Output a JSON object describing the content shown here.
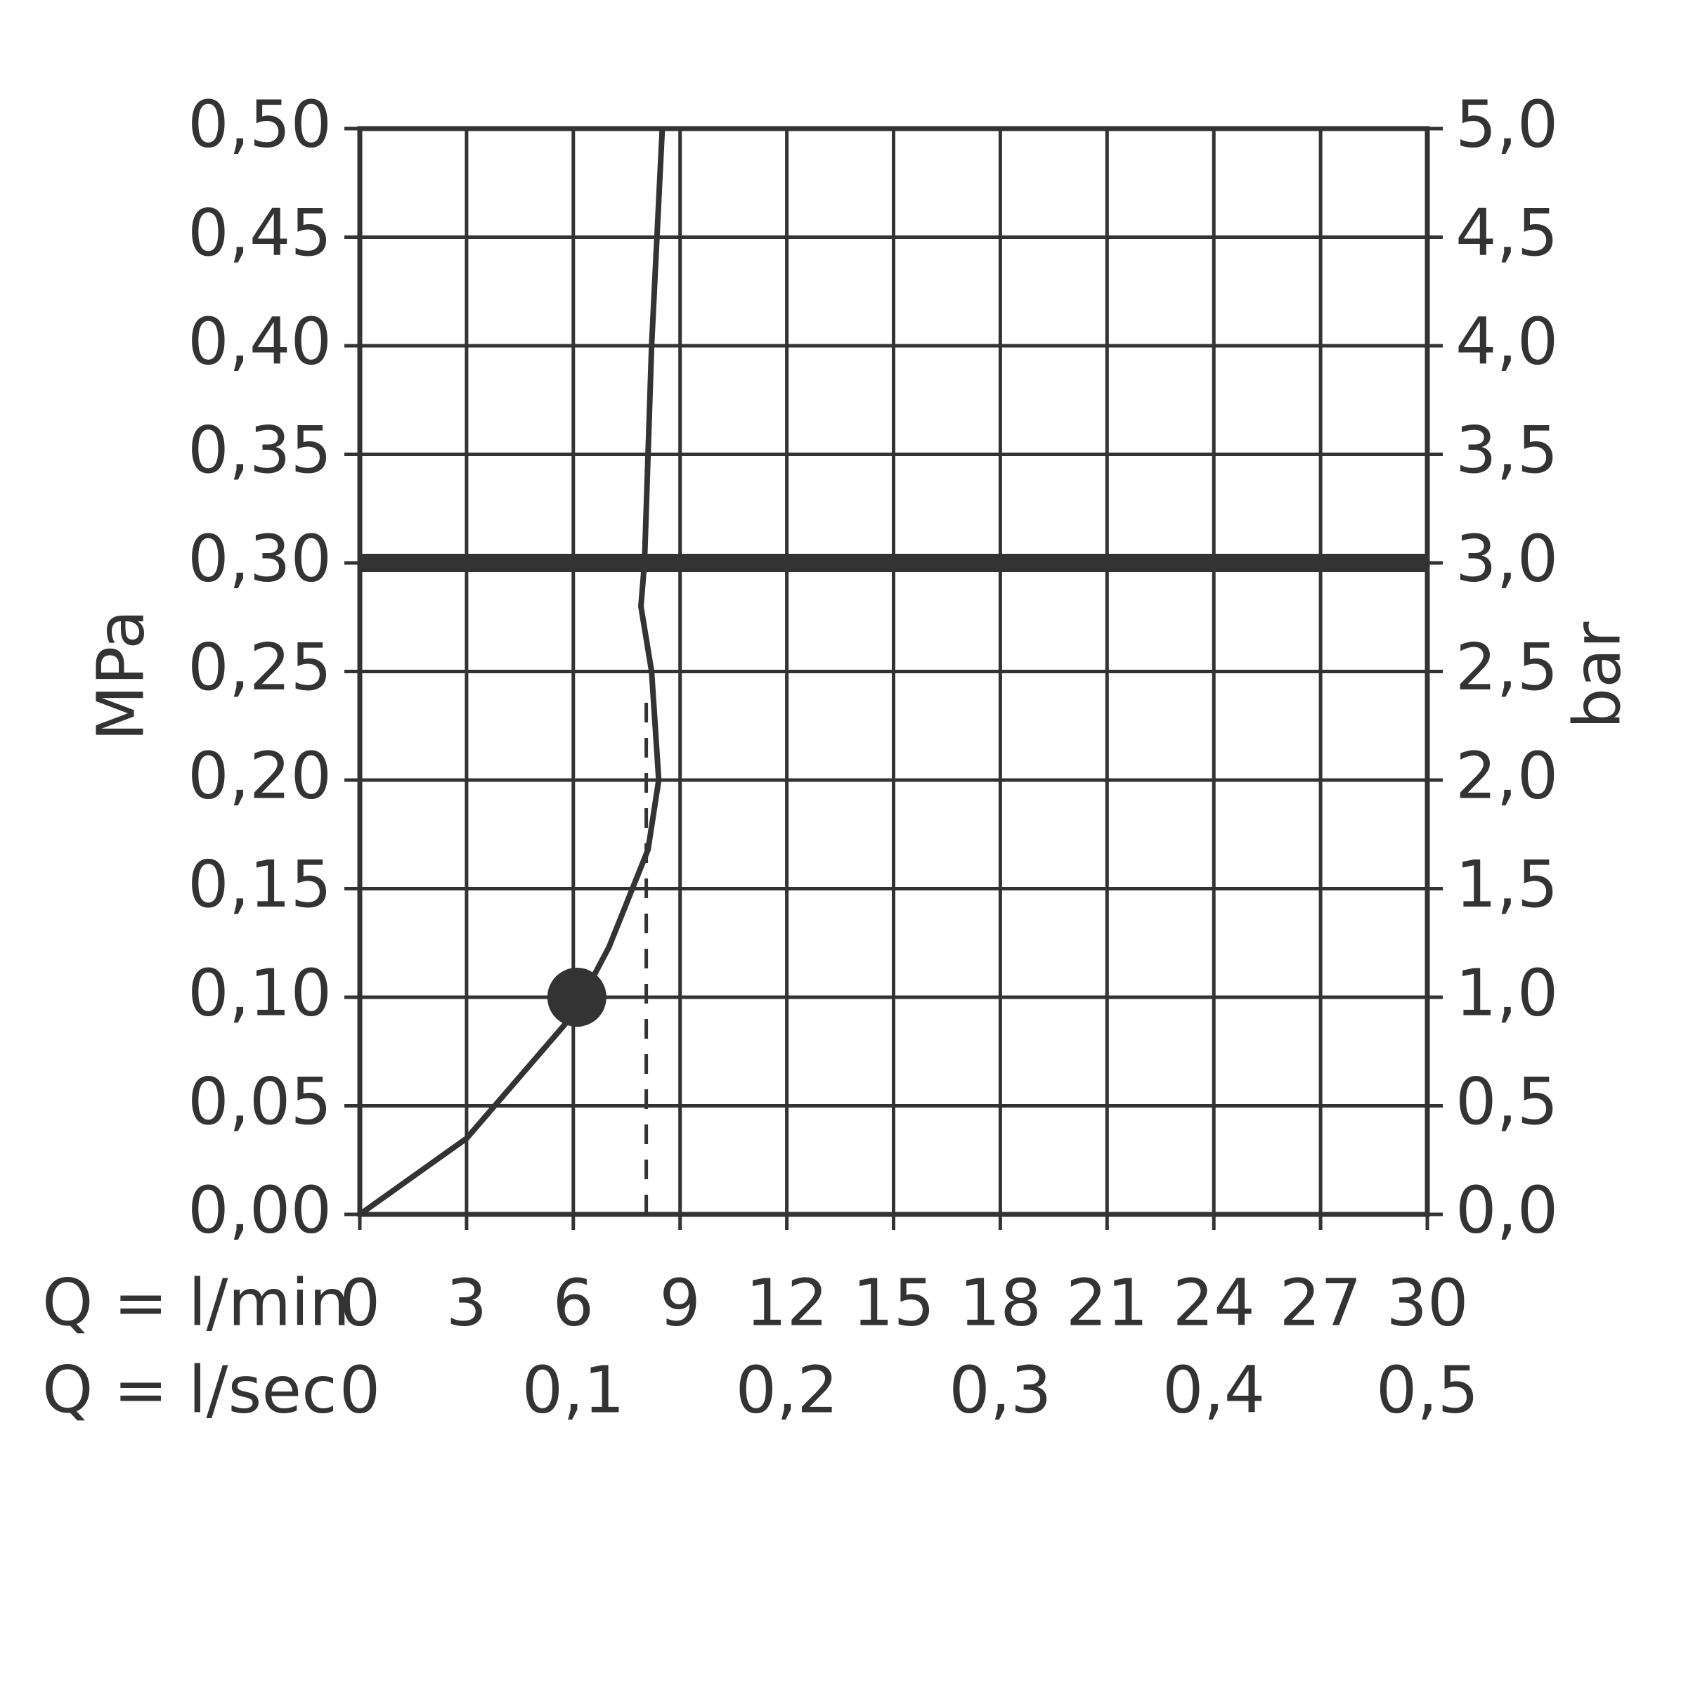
{
  "chart_data": {
    "type": "line",
    "y_label": "MPa",
    "y2_label": "bar",
    "x_label": "Q = l/min",
    "x2_label": "Q = l/sec",
    "xlim": [
      0,
      30
    ],
    "xticks": [
      0,
      3,
      6,
      9,
      12,
      15,
      18,
      21,
      24,
      27,
      30
    ],
    "x2lim": [
      0,
      0.5
    ],
    "x2ticks": [
      0,
      {
        "value": 0.1,
        "label": "0,1"
      },
      {
        "value": 0.2,
        "label": "0,2"
      },
      {
        "value": 0.3,
        "label": "0,3"
      },
      {
        "value": 0.4,
        "label": "0,4"
      },
      {
        "value": 0.5,
        "label": "0,5"
      }
    ],
    "ylim": [
      0,
      0.5
    ],
    "yticks": [
      {
        "value": 0,
        "label": "0,00"
      },
      {
        "value": 0.05,
        "label": "0,05"
      },
      {
        "value": 0.1,
        "label": "0,10"
      },
      {
        "value": 0.15,
        "label": "0,15"
      },
      {
        "value": 0.2,
        "label": "0,20"
      },
      {
        "value": 0.25,
        "label": "0,25"
      },
      {
        "value": 0.3,
        "label": "0,30"
      },
      {
        "value": 0.35,
        "label": "0,35"
      },
      {
        "value": 0.4,
        "label": "0,40"
      },
      {
        "value": 0.45,
        "label": "0,45"
      },
      {
        "value": 0.5,
        "label": "0,50"
      }
    ],
    "y2lim": [
      0,
      5
    ],
    "y2ticks": [
      {
        "value": 0,
        "label": "0,0"
      },
      {
        "value": 0.5,
        "label": "0,5"
      },
      {
        "value": 1,
        "label": "1,0"
      },
      {
        "value": 1.5,
        "label": "1,5"
      },
      {
        "value": 2,
        "label": "2,0"
      },
      {
        "value": 2.5,
        "label": "2,5"
      },
      {
        "value": 3,
        "label": "3,0"
      },
      {
        "value": 3.5,
        "label": "3,5"
      },
      {
        "value": 4,
        "label": "4,0"
      },
      {
        "value": 4.5,
        "label": "4,5"
      },
      {
        "value": 5,
        "label": "5,0"
      }
    ],
    "grid": true,
    "series": [
      {
        "color": "#333333",
        "style": "solid",
        "x": [
          0,
          3,
          6,
          7,
          8.1,
          8.4,
          8.2,
          7.9,
          8.0,
          8.2,
          8.5
        ],
        "values": [
          0,
          0.035,
          0.092,
          0.123,
          0.168,
          0.2,
          0.25,
          0.28,
          0.3,
          0.4,
          0.5
        ]
      },
      {
        "color": "#333333",
        "style": "dashed",
        "x": [
          8.05,
          8.05
        ],
        "values": [
          0,
          0.24
        ]
      }
    ],
    "points": [
      {
        "x": 6.1,
        "y": 0.1
      }
    ],
    "reference_line": {
      "y": 0.3
    }
  }
}
